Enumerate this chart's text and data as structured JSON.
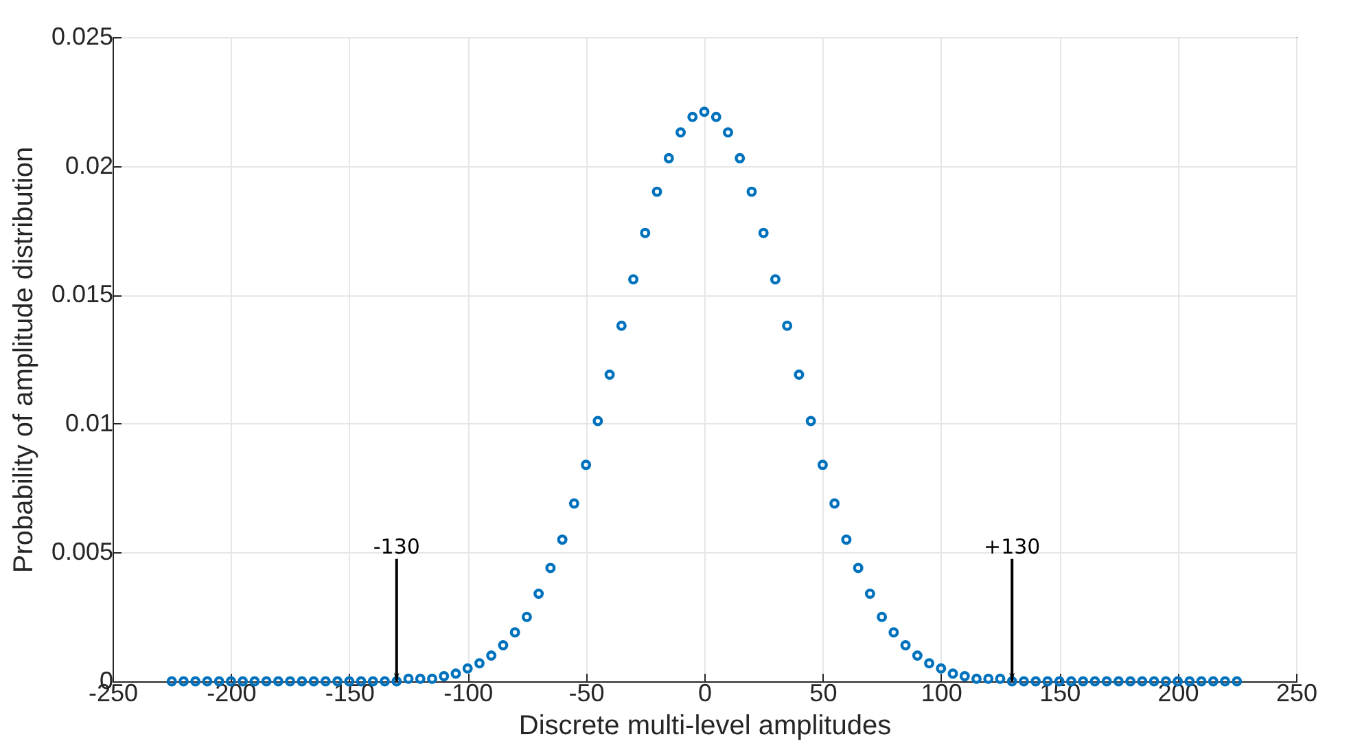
{
  "chart_data": {
    "type": "scatter",
    "xlabel": "Discrete multi-level amplitudes",
    "ylabel": "Probability of amplitude distribution",
    "x": [
      -225,
      -220,
      -215,
      -210,
      -205,
      -200,
      -195,
      -190,
      -185,
      -180,
      -175,
      -170,
      -165,
      -160,
      -155,
      -150,
      -145,
      -140,
      -135,
      -130,
      -125,
      -120,
      -115,
      -110,
      -105,
      -100,
      -95,
      -90,
      -85,
      -80,
      -75,
      -70,
      -65,
      -60,
      -55,
      -50,
      -45,
      -40,
      -35,
      -30,
      -25,
      -20,
      -15,
      -10,
      -5,
      0,
      5,
      10,
      15,
      20,
      25,
      30,
      35,
      40,
      45,
      50,
      55,
      60,
      65,
      70,
      75,
      80,
      85,
      90,
      95,
      100,
      105,
      110,
      115,
      120,
      125,
      130,
      135,
      140,
      145,
      150,
      155,
      160,
      165,
      170,
      175,
      180,
      185,
      190,
      195,
      200,
      205,
      210,
      215,
      220,
      225
    ],
    "series": [
      {
        "color": "#0072bd",
        "values": [
          0,
          0,
          0,
          0,
          0,
          0,
          0,
          0,
          0,
          0,
          0,
          0,
          0,
          0,
          0,
          0,
          0,
          0,
          0,
          0,
          0.0001,
          0.0001,
          0.0001,
          0.0002,
          0.0003,
          0.0005,
          0.0007,
          0.001,
          0.0014,
          0.0019,
          0.0025,
          0.0034,
          0.0044,
          0.0055,
          0.0069,
          0.0084,
          0.0101,
          0.0119,
          0.0138,
          0.0156,
          0.0174,
          0.019,
          0.0203,
          0.0213,
          0.0219,
          0.0221,
          0.0219,
          0.0213,
          0.0203,
          0.019,
          0.0174,
          0.0156,
          0.0138,
          0.0119,
          0.0101,
          0.0084,
          0.0069,
          0.0055,
          0.0044,
          0.0034,
          0.0025,
          0.0019,
          0.0014,
          0.001,
          0.0007,
          0.0005,
          0.0003,
          0.0002,
          0.0001,
          0.0001,
          0.0001,
          0,
          0,
          0,
          0,
          0,
          0,
          0,
          0,
          0,
          0,
          0,
          0,
          0,
          0,
          0,
          0,
          0,
          0,
          0,
          0
        ]
      }
    ],
    "xlim": [
      -250,
      250
    ],
    "xticks": [
      -250,
      -200,
      -150,
      -100,
      -50,
      0,
      50,
      100,
      150,
      200,
      250
    ],
    "ylim": [
      0,
      0.025
    ],
    "yticks": [
      0,
      0.005,
      0.01,
      0.015,
      0.02,
      0.025
    ],
    "grid": true,
    "marker": "circle",
    "annotations": [
      {
        "text": "-130",
        "x": -130,
        "y": 0
      },
      {
        "text": "+130",
        "x": 130,
        "y": 0
      }
    ]
  }
}
